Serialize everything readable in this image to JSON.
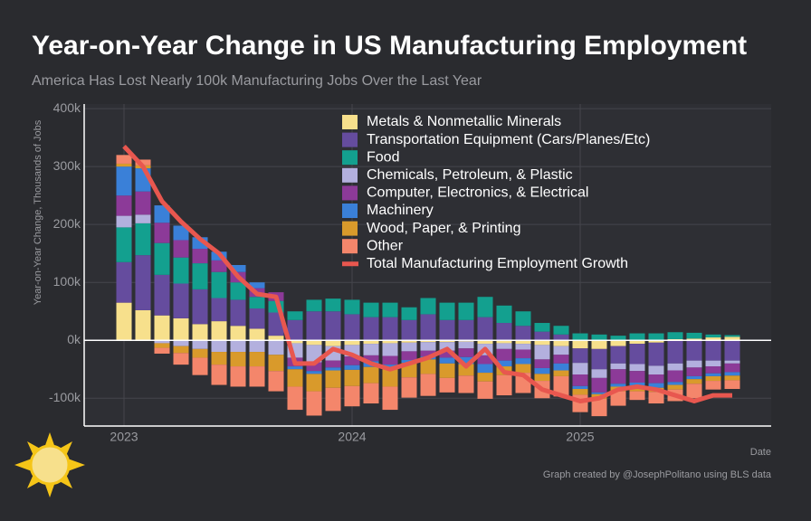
{
  "chart_data": {
    "type": "bar",
    "stacked": true,
    "title": "Year-on-Year Change in US Manufacturing Employment",
    "subtitle": "America Has Lost Nearly 100k Manufacturing Jobs Over the Last Year",
    "y_label": "Year-on-Year Change, Thousands of Jobs",
    "x_label": "Date",
    "credit": "Graph created by @JosephPolitano using BLS data",
    "categories": [
      "2023",
      null,
      null,
      null,
      null,
      null,
      null,
      null,
      null,
      null,
      null,
      null,
      "2024",
      null,
      null,
      null,
      null,
      null,
      null,
      null,
      null,
      null,
      null,
      null,
      "2025",
      null,
      null,
      null,
      null,
      null,
      null,
      null,
      null
    ],
    "ylim": [
      -148,
      408
    ],
    "yticks": [
      {
        "value": -100,
        "label": "-100k"
      },
      {
        "value": 0,
        "label": "0k"
      },
      {
        "value": 100,
        "label": "100k"
      },
      {
        "value": 200,
        "label": "200k"
      },
      {
        "value": 300,
        "label": "300k"
      },
      {
        "value": 400,
        "label": "400k"
      }
    ],
    "grid": true,
    "series": [
      {
        "name": "Metals & Nonmetallic Minerals",
        "color": "#f7e08c",
        "values": [
          65,
          52,
          43,
          38,
          28,
          33,
          25,
          20,
          8,
          -5,
          -8,
          -10,
          -8,
          -6,
          -5,
          -4,
          -3,
          -3,
          -2,
          -6,
          -5,
          -6,
          -8,
          -10,
          -14,
          -15,
          -10,
          -6,
          -4,
          2,
          3,
          5,
          6
        ]
      },
      {
        "name": "Transportation Equipment (Cars/Planes/Etc)",
        "color": "#654c9e",
        "values": [
          70,
          95,
          70,
          60,
          60,
          40,
          45,
          35,
          40,
          35,
          50,
          50,
          45,
          40,
          40,
          35,
          45,
          35,
          35,
          40,
          30,
          25,
          15,
          10,
          -25,
          -35,
          -30,
          -35,
          -40,
          -40,
          -35,
          -35,
          -35
        ]
      },
      {
        "name": "Food",
        "color": "#13a08f",
        "values": [
          60,
          55,
          55,
          45,
          45,
          45,
          30,
          20,
          20,
          15,
          20,
          22,
          25,
          25,
          25,
          22,
          28,
          30,
          30,
          35,
          30,
          25,
          15,
          15,
          12,
          10,
          8,
          12,
          12,
          12,
          10,
          5,
          3
        ]
      },
      {
        "name": "Chemicals, Petroleum, & Plastic",
        "color": "#b3b0de",
        "values": [
          20,
          15,
          -5,
          -10,
          -15,
          -20,
          -20,
          -20,
          -25,
          -25,
          -30,
          -25,
          -20,
          -20,
          -22,
          -15,
          -15,
          -15,
          -12,
          -20,
          -10,
          -10,
          -25,
          -15,
          -20,
          -15,
          -10,
          -12,
          -15,
          -12,
          -12,
          -10,
          -5
        ]
      },
      {
        "name": "Computer, Electronics, & Electrical",
        "color": "#8c3a98",
        "values": [
          35,
          40,
          35,
          30,
          25,
          20,
          18,
          15,
          15,
          -15,
          -15,
          -12,
          -15,
          -10,
          -15,
          -15,
          -10,
          -12,
          -15,
          -15,
          -20,
          -15,
          -15,
          -15,
          -20,
          -25,
          -25,
          -20,
          -15,
          -20,
          -15,
          -12,
          -15
        ]
      },
      {
        "name": "Machinery",
        "color": "#3a80d8",
        "values": [
          50,
          40,
          30,
          25,
          20,
          15,
          12,
          10,
          0,
          -5,
          -5,
          -5,
          -8,
          -10,
          -8,
          -5,
          -5,
          -10,
          -12,
          -15,
          -10,
          -10,
          -10,
          -12,
          -5,
          -3,
          -5,
          -8,
          -8,
          -5,
          -5,
          -5,
          -6
        ]
      },
      {
        "name": "Wood, Paper, & Printing",
        "color": "#d99a2b",
        "values": [
          5,
          5,
          -8,
          -12,
          -15,
          -22,
          -25,
          -25,
          -28,
          -30,
          -30,
          -30,
          -28,
          -28,
          -30,
          -25,
          -25,
          -25,
          -20,
          -15,
          -15,
          -15,
          -12,
          -10,
          -10,
          -8,
          -8,
          -7,
          -7,
          -8,
          -8,
          -8,
          -8
        ]
      },
      {
        "name": "Other",
        "color": "#f4866b",
        "values": [
          15,
          10,
          -10,
          -20,
          -30,
          -35,
          -35,
          -35,
          -35,
          -40,
          -42,
          -40,
          -35,
          -35,
          -40,
          -35,
          -38,
          -25,
          -30,
          -30,
          -35,
          -35,
          -30,
          -35,
          -30,
          -30,
          -25,
          -15,
          -20,
          -20,
          -25,
          -15,
          -15
        ]
      },
      {
        "name": "Total Manufacturing Employment Growth",
        "color": "#e8574f",
        "kind": "line",
        "values": [
          335,
          300,
          240,
          205,
          175,
          150,
          110,
          80,
          75,
          -40,
          -40,
          -15,
          -25,
          -40,
          -50,
          -40,
          -30,
          -15,
          -45,
          -15,
          -55,
          -60,
          -85,
          -95,
          -105,
          -100,
          -85,
          -80,
          -85,
          -95,
          -105,
          -95,
          -95
        ]
      }
    ]
  }
}
